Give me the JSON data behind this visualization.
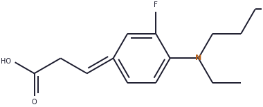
{
  "bg_color": "#ffffff",
  "line_color": "#1c1c2e",
  "label_color_N": "#b8621b",
  "label_color_main": "#1c1c2e",
  "line_width": 1.4,
  "figsize": [
    3.8,
    1.55
  ],
  "dpi": 100,
  "xlim": [
    -0.05,
    1.05
  ],
  "ylim": [
    -0.05,
    1.05
  ]
}
